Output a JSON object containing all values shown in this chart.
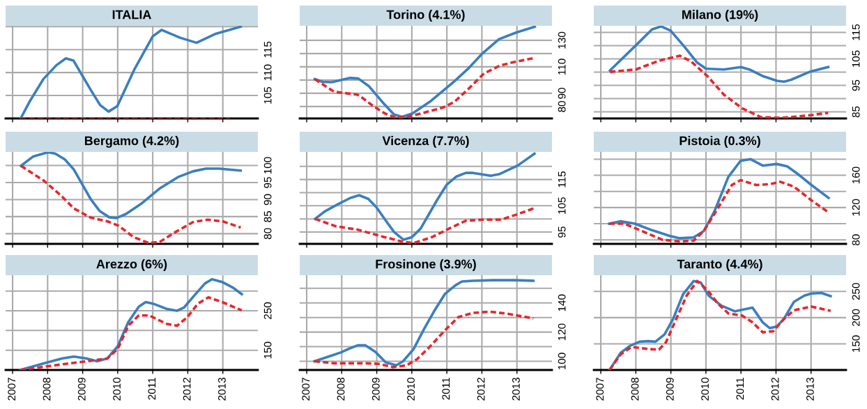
{
  "chart_data": [
    {
      "type": "line",
      "title": "ITALIA",
      "xlim": [
        2006.8,
        2014
      ],
      "xticks": [
        2007,
        2008,
        2009,
        2010,
        2011,
        2012,
        2013
      ],
      "ylim": [
        100,
        120.2
      ],
      "yticks": [
        {
          "value": 100,
          "label": null
        },
        105,
        110,
        115,
        {
          "value": 120,
          "label": null
        }
      ],
      "grid": true,
      "tick_labels": "y",
      "series": [
        {
          "color": "#3a7fbf",
          "line_style": "solid",
          "x": [
            2007.23,
            2007.48,
            2007.88,
            2008.25,
            2008.52,
            2008.74,
            2009.24,
            2009.5,
            2009.74,
            2009.99,
            2010.47,
            2011.0,
            2011.25,
            2011.78,
            2012.25,
            2012.78,
            2013.51
          ],
          "values": [
            100,
            103.6,
            108.6,
            111.6,
            113.1,
            112.6,
            106.1,
            102.9,
            101.5,
            102.7,
            110.6,
            117.9,
            119.3,
            117.6,
            116.5,
            118.4,
            120
          ]
        },
        {
          "color": "#e8262b",
          "line_style": "dashed",
          "x": [
            2007.23,
            2013.2
          ],
          "values": [
            100,
            100
          ]
        }
      ]
    },
    {
      "type": "line",
      "title": "Torino (4.1%)",
      "xlim": [
        2006.8,
        2014
      ],
      "xticks": [
        2007,
        2008,
        2009,
        2010,
        2011,
        2012,
        2013
      ],
      "ylim": [
        71,
        141
      ],
      "yticks": [
        80,
        90,
        {
          "value": 100,
          "label": null
        },
        110,
        {
          "value": 120,
          "label": null
        },
        130
      ],
      "grid": true,
      "tick_labels": "y",
      "series": [
        {
          "color": "#3a7fbf",
          "line_style": "solid",
          "x": [
            2007.23,
            2007.45,
            2007.71,
            2008.01,
            2008.24,
            2008.47,
            2008.77,
            2009.16,
            2009.49,
            2009.72,
            2010.02,
            2010.55,
            2011.21,
            2011.6,
            2012.0,
            2012.49,
            2012.99,
            2013.51
          ],
          "values": [
            100.7,
            98.6,
            98.4,
            100.2,
            101.6,
            101.2,
            95.5,
            83.4,
            74.0,
            72.2,
            74.8,
            84.3,
            99.0,
            108.4,
            119.7,
            130.9,
            136.0,
            140.3
          ]
        },
        {
          "color": "#e8262b",
          "line_style": "dashed",
          "x": [
            2007.23,
            2007.78,
            2008.44,
            2008.57,
            2008.9,
            2009.23,
            2009.56,
            2010.02,
            2010.88,
            2011.21,
            2011.6,
            2012.06,
            2012.52,
            2012.92,
            2013.48
          ],
          "values": [
            100.7,
            91.2,
            89.0,
            86.9,
            80.3,
            74.8,
            71.4,
            73.1,
            79.1,
            83.4,
            92.9,
            105.0,
            111.0,
            113.6,
            116.6
          ]
        }
      ]
    },
    {
      "type": "line",
      "title": "Milano (19%)",
      "xlim": [
        2006.8,
        2014
      ],
      "xticks": [
        2007,
        2008,
        2009,
        2010,
        2011,
        2012,
        2013
      ],
      "ylim": [
        82.5,
        117.5
      ],
      "yticks": [
        85,
        {
          "value": 90,
          "label": null
        },
        95,
        {
          "value": 100,
          "label": null
        },
        105,
        {
          "value": 110,
          "label": null
        },
        115
      ],
      "grid": true,
      "tick_labels": "y",
      "series": [
        {
          "color": "#3a7fbf",
          "line_style": "solid",
          "x": [
            2007.26,
            2008.0,
            2008.46,
            2008.72,
            2008.99,
            2009.38,
            2009.75,
            2010.0,
            2010.51,
            2011.0,
            2011.24,
            2011.64,
            2012.03,
            2012.23,
            2012.43,
            2012.96,
            2013.49
          ],
          "values": [
            100.6,
            110.1,
            116.1,
            117.3,
            115.7,
            109.7,
            103.6,
            101.3,
            101.0,
            101.9,
            101.0,
            98.4,
            96.7,
            96.4,
            97.1,
            100.1,
            101.9
          ]
        },
        {
          "color": "#e8262b",
          "line_style": "dashed",
          "x": [
            2007.26,
            2008.0,
            2008.66,
            2009.25,
            2009.58,
            2010.05,
            2010.51,
            2011.04,
            2011.57,
            2012.17,
            2012.96,
            2013.49
          ],
          "values": [
            100.1,
            101.0,
            104.3,
            106.2,
            104.0,
            98.4,
            91.5,
            86.3,
            83.0,
            82.7,
            83.7,
            84.6
          ]
        }
      ]
    },
    {
      "type": "line",
      "title": "Bergamo (4.2%)",
      "xlim": [
        2006.8,
        2014
      ],
      "xticks": [
        2007,
        2008,
        2009,
        2010,
        2011,
        2012,
        2013
      ],
      "ylim": [
        77,
        104
      ],
      "yticks": [
        80,
        85,
        90,
        95,
        100
      ],
      "grid": true,
      "tick_labels": "y",
      "series": [
        {
          "color": "#3a7fbf",
          "line_style": "solid",
          "x": [
            2007.24,
            2007.58,
            2008.01,
            2008.22,
            2008.49,
            2008.75,
            2009.23,
            2009.49,
            2009.76,
            2009.97,
            2010.24,
            2010.66,
            2011.19,
            2011.72,
            2012.15,
            2012.52,
            2012.89,
            2013.51
          ],
          "values": [
            99.9,
            102.6,
            103.9,
            103.5,
            101.8,
            98.8,
            90.1,
            86.6,
            84.8,
            84.6,
            85.8,
            88.7,
            93.2,
            96.6,
            98.3,
            99.1,
            99.1,
            98.5
          ]
        },
        {
          "color": "#e8262b",
          "line_style": "dashed",
          "x": [
            2007.24,
            2007.9,
            2008.38,
            2008.75,
            2009.23,
            2009.71,
            2010.03,
            2010.45,
            2010.87,
            2011.19,
            2011.62,
            2012.15,
            2012.57,
            2013.0,
            2013.51
          ],
          "values": [
            99.9,
            95.5,
            91.2,
            87.4,
            84.7,
            83.6,
            82.3,
            79.0,
            77.3,
            77.5,
            80.3,
            83.4,
            84.1,
            83.6,
            81.8
          ]
        }
      ]
    },
    {
      "type": "line",
      "title": "Vicenza (7.7%)",
      "xlim": [
        2006.8,
        2014
      ],
      "xticks": [
        2007,
        2008,
        2009,
        2010,
        2011,
        2012,
        2013
      ],
      "ylim": [
        90.5,
        125.5
      ],
      "yticks": [
        95,
        {
          "value": 100,
          "label": null
        },
        105,
        {
          "value": 110,
          "label": null
        },
        115,
        {
          "value": 120,
          "label": null
        }
      ],
      "grid": true,
      "tick_labels": "y",
      "series": [
        {
          "color": "#3a7fbf",
          "line_style": "solid",
          "x": [
            2007.24,
            2007.51,
            2007.88,
            2008.25,
            2008.5,
            2008.76,
            2008.99,
            2009.26,
            2009.5,
            2009.76,
            2010.0,
            2010.25,
            2010.74,
            2011.0,
            2011.27,
            2011.54,
            2011.75,
            2012.25,
            2012.49,
            2013.02,
            2013.5
          ],
          "values": [
            100,
            102.8,
            105.5,
            108,
            109,
            107.6,
            104.4,
            99.3,
            94.9,
            92.1,
            93,
            96.3,
            107.6,
            113.1,
            116.1,
            117.5,
            117.5,
            116.4,
            117,
            120.3,
            124.8
          ]
        },
        {
          "color": "#e8262b",
          "line_style": "dashed",
          "x": [
            2007.24,
            2007.83,
            2008.46,
            2009.21,
            2009.74,
            2010.05,
            2010.58,
            2011.0,
            2011.54,
            2012.02,
            2012.55,
            2013.02,
            2013.5
          ],
          "values": [
            100,
            97.2,
            95.9,
            93.1,
            91.3,
            90.8,
            93.1,
            95.9,
            99.3,
            99.7,
            99.7,
            101.8,
            104.1
          ]
        }
      ]
    },
    {
      "type": "line",
      "title": "Pistoia (0.3%)",
      "xlim": [
        2006.8,
        2014
      ],
      "xticks": [
        2007,
        2008,
        2009,
        2010,
        2011,
        2012,
        2013
      ],
      "ylim": [
        75,
        189
      ],
      "yticks": [
        80,
        {
          "value": 100,
          "label": null
        },
        120,
        {
          "value": 140,
          "label": null
        },
        160,
        {
          "value": 180,
          "label": null
        }
      ],
      "grid": true,
      "tick_labels": "y",
      "series": [
        {
          "color": "#3a7fbf",
          "line_style": "solid",
          "x": [
            2007.24,
            2007.57,
            2007.97,
            2008.46,
            2008.96,
            2009.25,
            2009.65,
            2009.94,
            2010.24,
            2010.64,
            2010.99,
            2011.27,
            2011.62,
            2012.02,
            2012.32,
            2012.61,
            2013.01,
            2013.5
          ],
          "values": [
            100,
            103,
            100,
            92,
            85,
            82,
            83,
            91,
            115,
            158,
            178,
            180,
            172,
            174,
            171,
            162,
            148,
            132
          ]
        },
        {
          "color": "#e8262b",
          "line_style": "dashed",
          "x": [
            2007.24,
            2007.67,
            2008.17,
            2008.76,
            2009.25,
            2009.65,
            2009.94,
            2010.24,
            2010.74,
            2010.99,
            2011.43,
            2011.82,
            2012.12,
            2012.51,
            2013.01,
            2013.5
          ],
          "values": [
            100,
            100,
            91,
            80,
            78,
            79,
            91,
            112,
            148,
            154,
            148,
            149,
            152,
            146,
            129,
            114
          ]
        }
      ]
    },
    {
      "type": "line",
      "title": "Arezzo (6%)",
      "xlim": [
        2006.8,
        2014
      ],
      "xticks": [
        2007,
        2008,
        2009,
        2010,
        2011,
        2012,
        2013
      ],
      "ylim": [
        100,
        340
      ],
      "yticks": [
        150,
        {
          "value": 200,
          "label": null
        },
        250,
        {
          "value": 300,
          "label": null
        }
      ],
      "grid": true,
      "series": [
        {
          "color": "#3a7fbf",
          "line_style": "solid",
          "x": [
            2007.22,
            2007.82,
            2008.41,
            2008.75,
            2009.11,
            2009.41,
            2009.7,
            2010.0,
            2010.3,
            2010.6,
            2010.8,
            2011.04,
            2011.39,
            2011.69,
            2011.89,
            2012.19,
            2012.49,
            2012.69,
            2012.98,
            2013.28,
            2013.54
          ],
          "values": [
            100,
            115,
            129,
            134,
            129,
            122,
            129,
            160,
            221,
            260,
            272,
            267,
            255,
            250,
            258,
            289,
            319,
            330,
            323,
            309,
            292
          ]
        },
        {
          "color": "#e8262b",
          "line_style": "dashed",
          "x": [
            2007.22,
            2008.21,
            2009.11,
            2009.7,
            2010.0,
            2010.3,
            2010.6,
            2010.9,
            2011.39,
            2011.69,
            2011.99,
            2012.29,
            2012.59,
            2012.98,
            2013.54
          ],
          "values": [
            100,
            112,
            122,
            129,
            153,
            212,
            238,
            238,
            217,
            212,
            234,
            268,
            284,
            272,
            251
          ]
        }
      ]
    },
    {
      "type": "line",
      "title": "Frosinone (3.9%)",
      "xlim": [
        2006.8,
        2014
      ],
      "xticks": [
        2007,
        2008,
        2009,
        2010,
        2011,
        2012,
        2013
      ],
      "ylim": [
        94,
        159
      ],
      "yticks": [
        100,
        {
          "value": 110,
          "label": null
        },
        120,
        {
          "value": 130,
          "label": null
        },
        140,
        {
          "value": 150,
          "label": null
        }
      ],
      "grid": true,
      "series": [
        {
          "color": "#3a7fbf",
          "line_style": "solid",
          "x": [
            2007.22,
            2007.58,
            2007.97,
            2008.27,
            2008.47,
            2008.67,
            2008.96,
            2009.26,
            2009.56,
            2009.75,
            2010.05,
            2010.35,
            2010.64,
            2010.94,
            2011.24,
            2011.43,
            2011.73,
            2012.32,
            2012.91,
            2013.47
          ],
          "values": [
            100,
            102.8,
            106,
            109.2,
            111,
            111,
            106.4,
            99.1,
            97.2,
            100,
            108.3,
            122.1,
            134.5,
            146,
            152,
            154.7,
            155.2,
            155.6,
            155.6,
            155.2
          ]
        },
        {
          "color": "#e8262b",
          "line_style": "dashed",
          "x": [
            2007.22,
            2007.78,
            2008.67,
            2009.06,
            2009.46,
            2009.85,
            2010.15,
            2010.54,
            2010.94,
            2011.33,
            2011.73,
            2012.22,
            2012.72,
            2013.47
          ],
          "values": [
            100,
            98.6,
            98.6,
            98.2,
            95.9,
            97.2,
            101.4,
            110.6,
            121.1,
            130.3,
            133.1,
            134,
            132.6,
            129.4
          ]
        }
      ]
    },
    {
      "type": "line",
      "title": "Taranto (4.4%)",
      "xlim": [
        2006.8,
        2014
      ],
      "xticks": [
        2007,
        2008,
        2009,
        2010,
        2011,
        2012,
        2013
      ],
      "ylim": [
        100,
        281
      ],
      "yticks": [
        150,
        200,
        250
      ],
      "grid": true,
      "series": [
        {
          "color": "#3a7fbf",
          "line_style": "solid",
          "x": [
            2007.25,
            2007.57,
            2007.83,
            2008.11,
            2008.36,
            2008.56,
            2008.82,
            2009.06,
            2009.35,
            2009.65,
            2009.85,
            2010.08,
            2010.44,
            2010.83,
            2011.33,
            2011.62,
            2011.82,
            2012.02,
            2012.22,
            2012.51,
            2012.81,
            2013.01,
            2013.3,
            2013.56
          ],
          "values": [
            100,
            133,
            146,
            154,
            155,
            154,
            168,
            197,
            245,
            270,
            267,
            242,
            223,
            212,
            219,
            191,
            180,
            183,
            197,
            230,
            242,
            246,
            247,
            241
          ]
        },
        {
          "color": "#e8262b",
          "line_style": "dashed",
          "x": [
            2007.25,
            2007.57,
            2007.87,
            2008.36,
            2008.66,
            2008.86,
            2009.15,
            2009.45,
            2009.75,
            2010.04,
            2010.34,
            2010.64,
            2011.03,
            2011.33,
            2011.62,
            2011.92,
            2012.22,
            2012.51,
            2013.01,
            2013.56
          ],
          "values": [
            100,
            130,
            144,
            140,
            139,
            153,
            197,
            242,
            270,
            253,
            227,
            208,
            204,
            191,
            172,
            174,
            197,
            214,
            221,
            213
          ]
        }
      ]
    }
  ]
}
